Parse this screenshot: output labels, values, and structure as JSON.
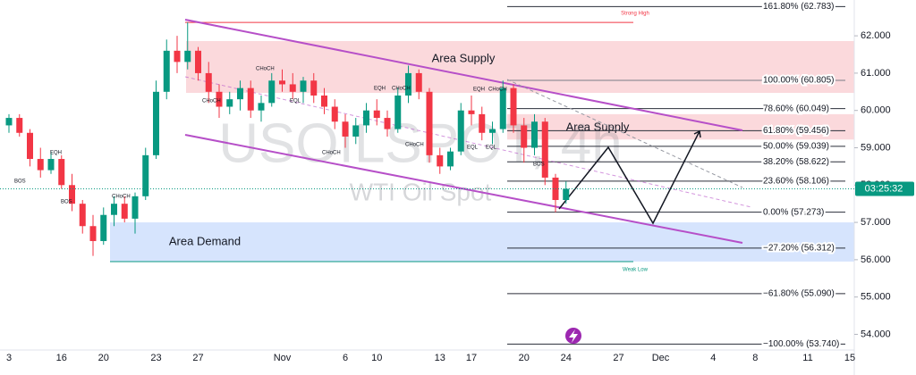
{
  "chart_data": {
    "type": "candlestick",
    "title": "USOILSPOT, 4h",
    "subtitle": "WTI Oil Spot",
    "categories": [
      "3",
      null,
      null,
      null,
      null,
      "16",
      null,
      null,
      null,
      "20",
      null,
      null,
      null,
      null,
      "23",
      null,
      null,
      null,
      "27",
      null,
      null,
      null,
      null,
      null,
      null,
      null,
      "Nov",
      null,
      null,
      null,
      null,
      null,
      "6",
      null,
      null,
      "10",
      null,
      null,
      null,
      null,
      null,
      "13",
      null,
      null,
      "17",
      null,
      null,
      null,
      null,
      "20",
      null,
      null,
      null,
      "24",
      null,
      null,
      null,
      null,
      "27",
      null,
      null,
      null,
      "Dec",
      null,
      null,
      null,
      null,
      "4",
      null,
      null,
      null,
      "8",
      null,
      null,
      null,
      null,
      "11",
      null,
      null,
      null,
      "15"
    ],
    "open": [
      59.6,
      59.8,
      59.4,
      58.7,
      58.4,
      58.7,
      58.0,
      57.5,
      56.9,
      56.5,
      57.2,
      57.5,
      57.1,
      57.7,
      58.8,
      60.5,
      61.6,
      61.3,
      61.6,
      61.0,
      60.5,
      60.1,
      60.3,
      60.6,
      60.0,
      60.2,
      60.8,
      60.7,
      60.5,
      60.8,
      60.4,
      60.1,
      59.7,
      59.3,
      59.6,
      60.0,
      59.8,
      59.5,
      60.4,
      61.0,
      60.5,
      58.8,
      58.5,
      58.9,
      60.0,
      59.9,
      59.4,
      59.5,
      60.6,
      59.6,
      59.0,
      59.7,
      58.2,
      57.6,
      null,
      null,
      null,
      null,
      null,
      null,
      null,
      null,
      null,
      null,
      null,
      null,
      null,
      null,
      null,
      null,
      null,
      null,
      null,
      null,
      null,
      null,
      null,
      null,
      null,
      null,
      null
    ],
    "high": [
      59.9,
      59.9,
      59.5,
      59.0,
      58.9,
      58.8,
      58.3,
      57.6,
      57.2,
      57.4,
      57.7,
      57.7,
      57.8,
      59.0,
      60.8,
      61.9,
      62.0,
      62.36,
      61.7,
      61.3,
      60.7,
      60.5,
      60.8,
      60.8,
      60.4,
      61.0,
      61.1,
      61.0,
      60.9,
      61.0,
      60.6,
      60.3,
      59.9,
      59.8,
      60.2,
      60.3,
      60.0,
      60.6,
      61.2,
      61.1,
      60.6,
      59.0,
      59.0,
      60.2,
      60.4,
      60.1,
      59.7,
      60.8,
      60.7,
      59.8,
      59.9,
      59.8,
      58.3,
      58.1,
      null,
      null,
      null,
      null,
      null,
      null,
      null,
      null,
      null,
      null,
      null,
      null,
      null,
      null,
      null,
      null,
      null,
      null,
      null,
      null,
      null,
      null,
      null,
      null,
      null,
      null,
      null
    ],
    "low": [
      59.4,
      59.3,
      58.5,
      58.2,
      58.3,
      57.9,
      57.3,
      56.7,
      56.1,
      56.4,
      56.9,
      57.0,
      56.7,
      57.6,
      58.7,
      60.3,
      61.0,
      61.1,
      60.8,
      60.2,
      59.8,
      59.9,
      60.0,
      59.8,
      59.7,
      60.1,
      60.5,
      60.3,
      60.2,
      60.2,
      59.9,
      59.5,
      59.0,
      59.1,
      59.4,
      59.6,
      59.3,
      59.4,
      60.2,
      60.3,
      58.6,
      58.3,
      58.4,
      58.8,
      59.6,
      59.2,
      59.1,
      59.4,
      59.4,
      58.6,
      58.8,
      58.0,
      57.27,
      57.5,
      null,
      null,
      null,
      null,
      null,
      null,
      null,
      null,
      null,
      null,
      null,
      null,
      null,
      null,
      null,
      null,
      null,
      null,
      null,
      null,
      null,
      null,
      null,
      null,
      null,
      null,
      null
    ],
    "close": [
      59.8,
      59.4,
      58.7,
      58.4,
      58.7,
      58.0,
      57.5,
      56.9,
      56.5,
      57.2,
      57.5,
      57.1,
      57.7,
      58.8,
      60.5,
      61.6,
      61.3,
      61.6,
      61.0,
      60.5,
      60.1,
      60.3,
      60.6,
      60.0,
      60.2,
      60.8,
      60.7,
      60.5,
      60.8,
      60.4,
      60.1,
      59.7,
      59.3,
      59.6,
      60.0,
      59.8,
      59.5,
      60.4,
      61.0,
      60.5,
      58.8,
      58.5,
      58.9,
      60.0,
      59.9,
      59.4,
      59.5,
      60.6,
      59.6,
      59.0,
      59.7,
      58.2,
      57.6,
      57.9,
      null,
      null,
      null,
      null,
      null,
      null,
      null,
      null,
      null,
      null,
      null,
      null,
      null,
      null,
      null,
      null,
      null,
      null,
      null,
      null,
      null,
      null,
      null,
      null,
      null,
      null,
      null
    ],
    "up_color": "#089981",
    "down_color": "#f23645",
    "ylim": [
      53.58,
      62.96
    ],
    "yticks": [
      {
        "value": 54,
        "label": "54.000"
      },
      {
        "value": 55,
        "label": "55.000"
      },
      {
        "value": 56,
        "label": "56.000"
      },
      {
        "value": 57,
        "label": "57.000"
      },
      {
        "value": 58,
        "label": "58.000"
      },
      {
        "value": 59,
        "label": "59.000"
      },
      {
        "value": 60,
        "label": "60.000"
      },
      {
        "value": 61,
        "label": "61.000"
      },
      {
        "value": 62,
        "label": "62.000"
      }
    ],
    "fib": {
      "values": [
        62.783,
        60.805,
        60.049,
        59.456,
        59.039,
        58.622,
        58.106,
        57.273,
        56.312,
        55.09,
        53.74
      ],
      "value_labels": [
        "161.80% (62.783)",
        "100.00% (60.805)",
        "78.60% (60.049)",
        "61.80% (59.456)",
        "50.00% (59.039)",
        "38.20% (58.622)",
        "23.60% (58.106)",
        "0.00% (57.273)",
        "−27.20% (56.312)",
        "−61.80% (55.090)",
        "−100.00% (53.740)"
      ]
    },
    "zones": [
      {
        "label": "Area Supply",
        "low": 60.47,
        "high": 61.86,
        "color": "#fbd9dc"
      },
      {
        "label": "Area Supply",
        "low": 59.22,
        "high": 59.9,
        "color": "#fbd9dc"
      },
      {
        "label": "Area Demand",
        "low": 55.95,
        "high": 57.0,
        "color": "#d6e4fd"
      }
    ],
    "levels": [
      {
        "label": "Strong High",
        "value": 62.36,
        "color": "#f23645"
      },
      {
        "label": "Weak Low",
        "value": 55.95,
        "color": "#089981"
      }
    ],
    "current": {
      "value": 57.9,
      "label": "03:25:32",
      "color": "#089981"
    },
    "markers": [
      "BOS",
      "EQH",
      "BOS",
      "CHoCH",
      "CHoCH",
      "CHoCH",
      "EQL",
      "CHoCH",
      "EQH",
      "CHoCH",
      "CHoCH",
      "EQH",
      "CHoCH",
      "EQL",
      "EQL",
      "BOS"
    ]
  }
}
